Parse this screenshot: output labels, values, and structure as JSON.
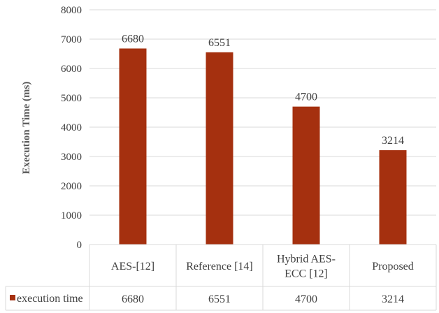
{
  "chart_data": {
    "type": "bar",
    "title": "",
    "xlabel": "",
    "ylabel": "Execution Time (ms)",
    "categories": [
      [
        "AES-[12]"
      ],
      [
        "Reference [14]"
      ],
      [
        "Hybrid AES-",
        "ECC [12]"
      ],
      [
        "Proposed"
      ]
    ],
    "series": [
      {
        "name": "execution time",
        "values": [
          6680,
          6551,
          4700,
          3214
        ]
      }
    ],
    "data_labels": [
      "6680",
      "6551",
      "4700",
      "3214"
    ],
    "ylim": [
      0,
      8000
    ],
    "yticks": [
      "0",
      "1000",
      "2000",
      "3000",
      "4000",
      "5000",
      "6000",
      "7000",
      "8000"
    ],
    "grid": "horizontal",
    "data_table": true,
    "colors": {
      "bar": "#a5300f",
      "grid": "#d9d9d9",
      "text": "#404040"
    }
  }
}
